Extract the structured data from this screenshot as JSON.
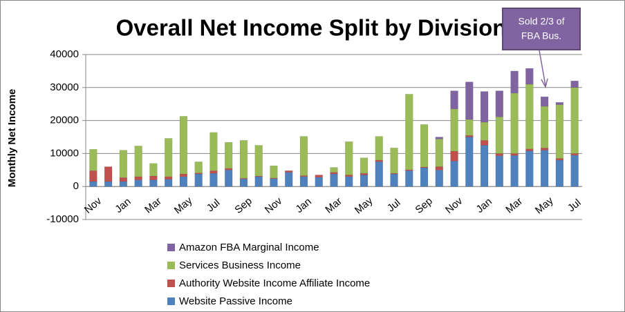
{
  "chart_data": {
    "type": "bar",
    "stacked": true,
    "title": "Overall Net Income Split by Division",
    "y_label": "Monthly Net Income",
    "annotation": [
      "Sold 2/3 of",
      "FBA Bus."
    ],
    "categories": [
      "Nov",
      null,
      "Jan",
      null,
      "Mar",
      null,
      "May",
      null,
      "Jul",
      null,
      "Sep",
      null,
      "Nov",
      null,
      "Jan",
      null,
      "Mar",
      null,
      "May",
      null,
      "Jul",
      null,
      "Sep",
      null,
      "Nov",
      null,
      "Jan",
      null,
      "Mar",
      null,
      "May",
      null,
      "Jul"
    ],
    "series": [
      {
        "name": "Website Passive Income",
        "color": "#4f81bd",
        "values": [
          1500,
          1500,
          1500,
          2000,
          2000,
          2200,
          3000,
          3800,
          4000,
          5000,
          2300,
          3000,
          2400,
          4300,
          3000,
          2800,
          3800,
          3000,
          3500,
          7500,
          3800,
          4800,
          5700,
          5000,
          7700,
          15000,
          12500,
          9300,
          9400,
          10800,
          11000,
          8000,
          9500
        ]
      },
      {
        "name": "Authority Website Income Affiliate Income",
        "color": "#c0504d",
        "values": [
          3300,
          4500,
          1200,
          1000,
          1200,
          800,
          800,
          300,
          800,
          500,
          200,
          200,
          200,
          500,
          300,
          700,
          500,
          500,
          500,
          500,
          200,
          300,
          200,
          1000,
          3000,
          500,
          1500,
          700,
          600,
          600,
          700,
          500,
          500
        ]
      },
      {
        "name": "Services Business Income",
        "color": "#9bbb59",
        "values": [
          6500,
          0,
          8300,
          9300,
          3800,
          11600,
          17500,
          3400,
          11600,
          7900,
          11500,
          9300,
          3700,
          0,
          11900,
          0,
          1500,
          10100,
          4700,
          7200,
          7700,
          22900,
          12900,
          8400,
          12800,
          4800,
          5500,
          11100,
          18300,
          19600,
          12600,
          16300,
          20000
        ]
      },
      {
        "name": "Amazon FBA Marginal Income",
        "color": "#8064a2",
        "values": [
          0,
          0,
          0,
          0,
          0,
          0,
          0,
          0,
          0,
          0,
          0,
          0,
          0,
          0,
          0,
          0,
          0,
          0,
          0,
          0,
          0,
          0,
          0,
          600,
          5500,
          11400,
          9300,
          7900,
          6700,
          4800,
          2900,
          700,
          2000
        ]
      }
    ],
    "ylim": [
      -10000,
      40000
    ],
    "yticks": [
      -10000,
      0,
      10000,
      20000,
      30000,
      40000
    ],
    "grid": true
  }
}
